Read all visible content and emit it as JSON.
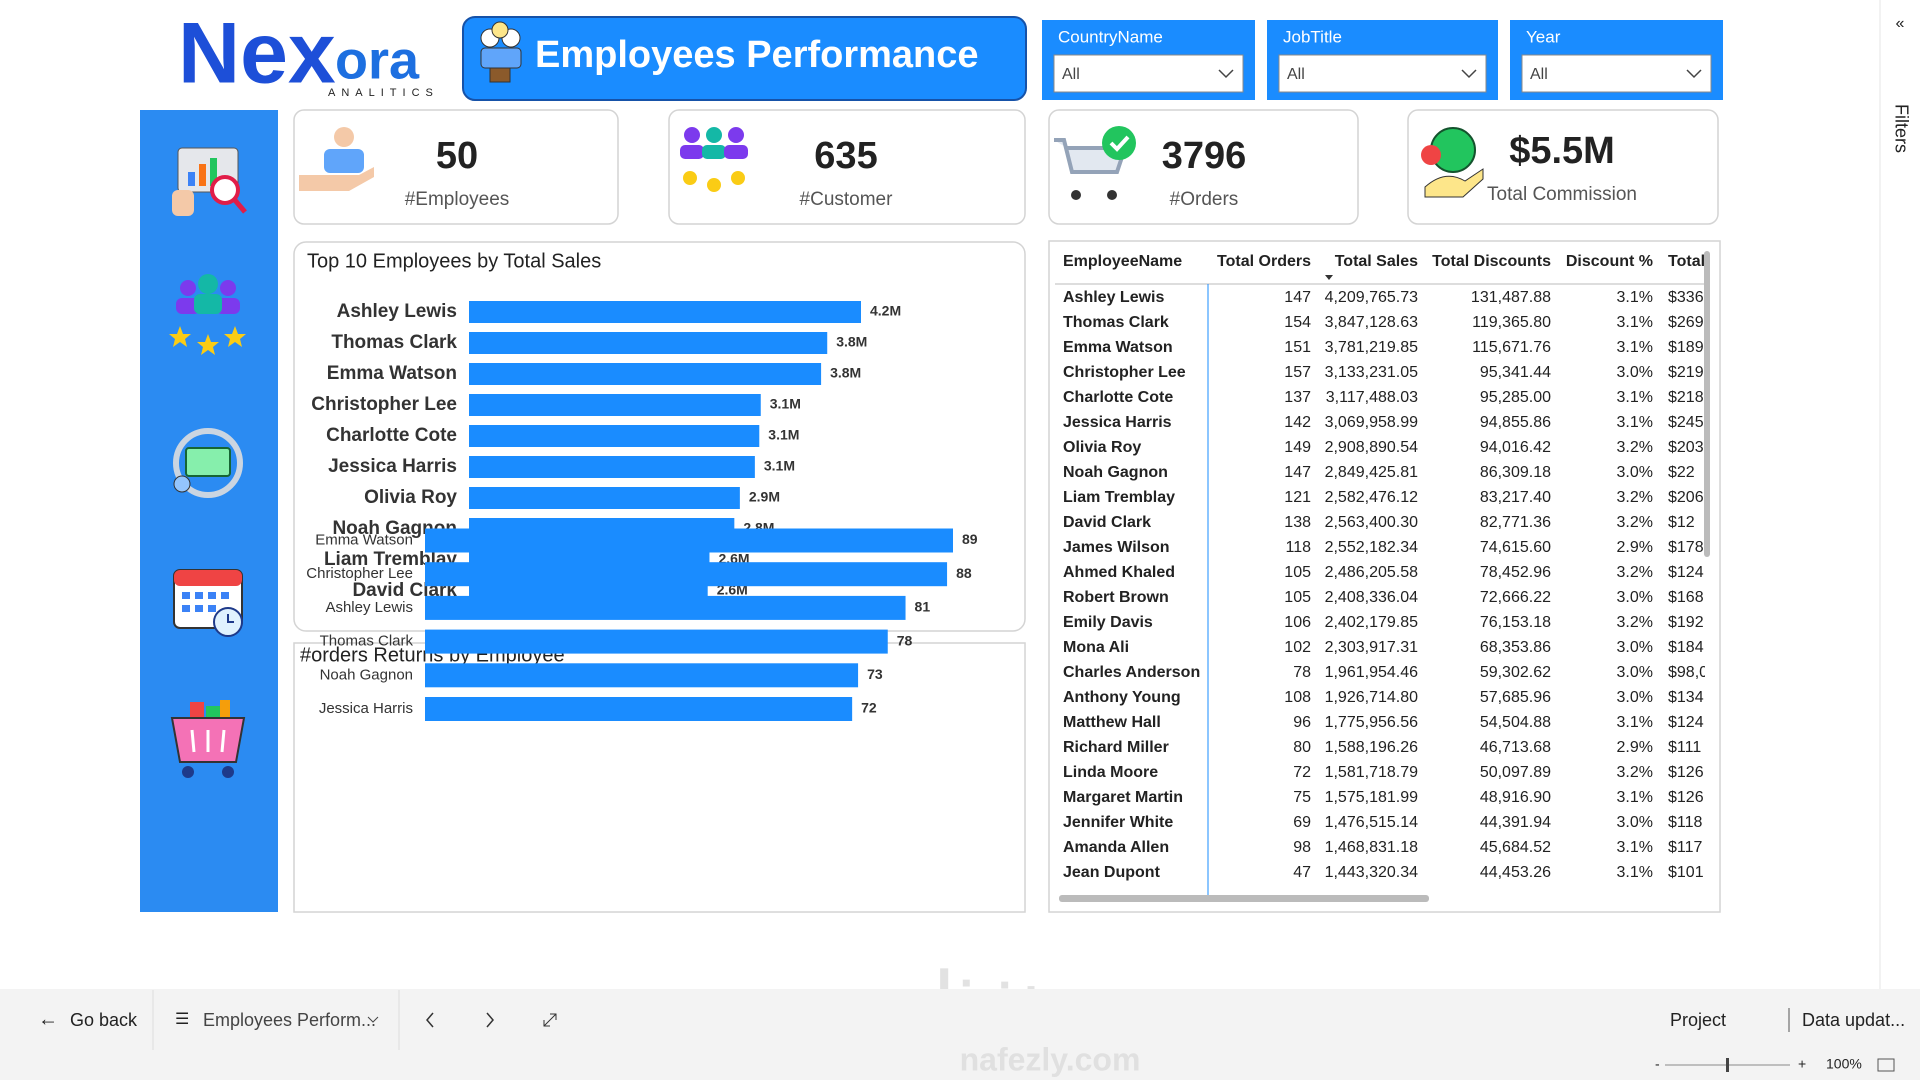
{
  "header": {
    "logo": {
      "text1": "Nex",
      "text2": "ora",
      "tagline": "ANALITICS"
    },
    "title": "Employees Performance"
  },
  "filters": [
    {
      "label": "CountryName",
      "value": "All"
    },
    {
      "label": "JobTitle",
      "value": "All"
    },
    {
      "label": "Year",
      "value": "All"
    }
  ],
  "kpis": [
    {
      "value": "50",
      "label": "#Employees"
    },
    {
      "value": "635",
      "label": "#Customer"
    },
    {
      "value": "3796",
      "label": "#Orders"
    },
    {
      "value": "$5.5M",
      "label": "Total Commission"
    }
  ],
  "chart_data": [
    {
      "type": "bar",
      "orientation": "horizontal",
      "title": "Top 10 Employees by Total Sales",
      "color": "#1a8cff",
      "categories": [
        "Ashley Lewis",
        "Thomas Clark",
        "Emma Watson",
        "Christopher Lee",
        "Charlotte Cote",
        "Jessica Harris",
        "Olivia Roy",
        "Noah Gagnon",
        "Liam Tremblay",
        "David Clark"
      ],
      "values": [
        4209765.73,
        3847128.63,
        3781219.85,
        3133231.05,
        3117488.03,
        3069958.99,
        2908890.54,
        2849425.81,
        2582476.12,
        2563400.3
      ],
      "value_labels": [
        "4.2M",
        "3.8M",
        "3.8M",
        "3.1M",
        "3.1M",
        "3.1M",
        "2.9M",
        "2.8M",
        "2.6M",
        "2.6M"
      ]
    },
    {
      "type": "bar",
      "orientation": "horizontal",
      "title": "#orders Returns by Employee",
      "color": "#1a8cff",
      "categories": [
        "Emma Watson",
        "Christopher Lee",
        "Ashley Lewis",
        "Thomas Clark",
        "Noah Gagnon",
        "Jessica Harris"
      ],
      "values": [
        89,
        88,
        81,
        78,
        73,
        72
      ]
    }
  ],
  "table": {
    "columns": [
      "EmployeeName",
      "Total Orders",
      "Total Sales",
      "Total Discounts",
      "Discount %",
      "Total"
    ],
    "rows": [
      [
        "Ashley Lewis",
        "147",
        "4,209,765.73",
        "131,487.88",
        "3.1%",
        "$336"
      ],
      [
        "Thomas Clark",
        "154",
        "3,847,128.63",
        "119,365.80",
        "3.1%",
        "$269"
      ],
      [
        "Emma Watson",
        "151",
        "3,781,219.85",
        "115,671.76",
        "3.1%",
        "$189"
      ],
      [
        "Christopher Lee",
        "157",
        "3,133,231.05",
        "95,341.44",
        "3.0%",
        "$219"
      ],
      [
        "Charlotte Cote",
        "137",
        "3,117,488.03",
        "95,285.00",
        "3.1%",
        "$218"
      ],
      [
        "Jessica Harris",
        "142",
        "3,069,958.99",
        "94,855.86",
        "3.1%",
        "$245"
      ],
      [
        "Olivia Roy",
        "149",
        "2,908,890.54",
        "94,016.42",
        "3.2%",
        "$203"
      ],
      [
        "Noah Gagnon",
        "147",
        "2,849,425.81",
        "86,309.18",
        "3.0%",
        "$22"
      ],
      [
        "Liam Tremblay",
        "121",
        "2,582,476.12",
        "83,217.40",
        "3.2%",
        "$206"
      ],
      [
        "David Clark",
        "138",
        "2,563,400.30",
        "82,771.36",
        "3.2%",
        "$12"
      ],
      [
        "James Wilson",
        "118",
        "2,552,182.34",
        "74,615.60",
        "2.9%",
        "$178"
      ],
      [
        "Ahmed Khaled",
        "105",
        "2,486,205.58",
        "78,452.96",
        "3.2%",
        "$124"
      ],
      [
        "Robert Brown",
        "105",
        "2,408,336.04",
        "72,666.22",
        "3.0%",
        "$168"
      ],
      [
        "Emily Davis",
        "106",
        "2,402,179.85",
        "76,153.18",
        "3.2%",
        "$192"
      ],
      [
        "Mona Ali",
        "102",
        "2,303,917.31",
        "68,353.86",
        "3.0%",
        "$184"
      ],
      [
        "Charles Anderson",
        "78",
        "1,961,954.46",
        "59,302.62",
        "3.0%",
        "$98,0"
      ],
      [
        "Anthony Young",
        "108",
        "1,926,714.80",
        "57,685.96",
        "3.0%",
        "$134"
      ],
      [
        "Matthew Hall",
        "96",
        "1,775,956.56",
        "54,504.88",
        "3.1%",
        "$124"
      ],
      [
        "Richard Miller",
        "80",
        "1,588,196.26",
        "46,713.68",
        "2.9%",
        "$111"
      ],
      [
        "Linda Moore",
        "72",
        "1,581,718.79",
        "50,097.89",
        "3.2%",
        "$126"
      ],
      [
        "Margaret Martin",
        "75",
        "1,575,181.99",
        "48,916.90",
        "3.1%",
        "$126"
      ],
      [
        "Jennifer White",
        "69",
        "1,476,515.14",
        "44,391.94",
        "3.0%",
        "$118"
      ],
      [
        "Amanda Allen",
        "98",
        "1,468,831.18",
        "45,684.52",
        "3.1%",
        "$117"
      ],
      [
        "Jean Dupont",
        "47",
        "1,443,320.34",
        "44,453.26",
        "3.1%",
        "$101"
      ]
    ]
  },
  "footer": {
    "back": "Go back",
    "page": "Employees Perform...",
    "project": "Project",
    "updated": "Data updat...",
    "zoom": "100%"
  },
  "filters_pane": "Filters",
  "watermark": {
    "arabic": "نفذلي",
    "latin": "nafezly.com"
  }
}
